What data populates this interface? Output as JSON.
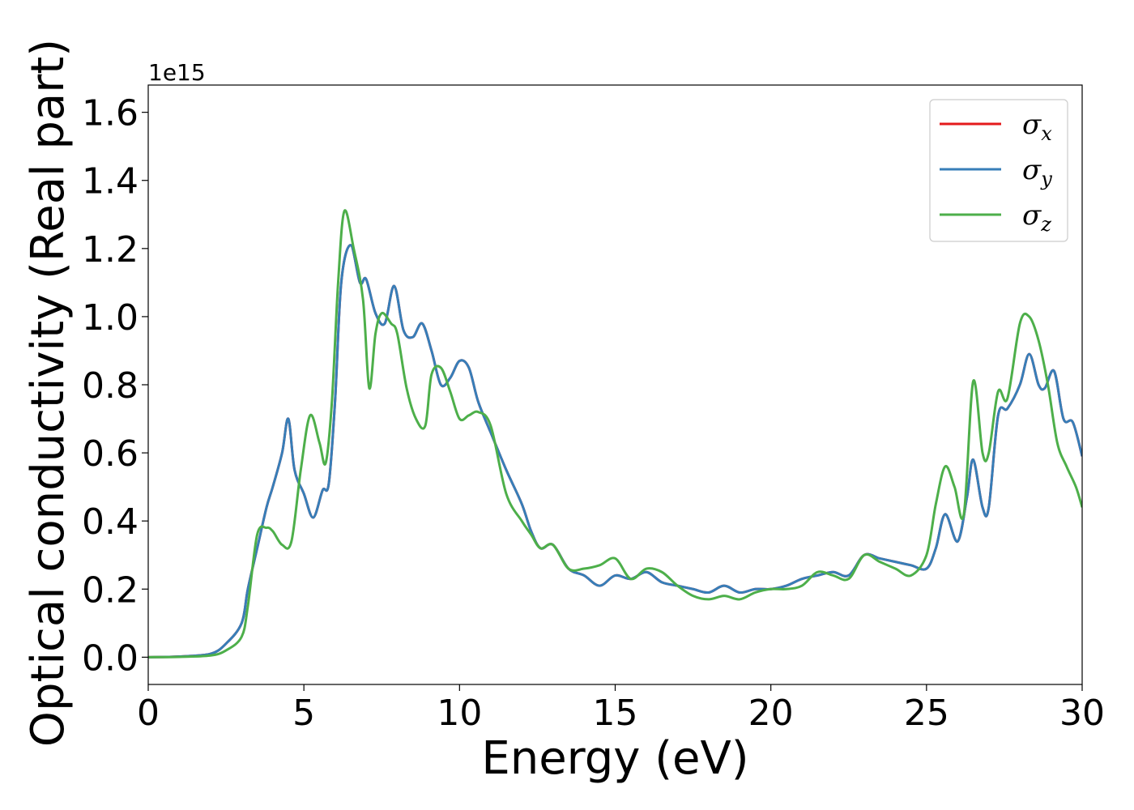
{
  "chart_data": {
    "type": "line",
    "xlabel": "Energy (eV)",
    "ylabel": "Optical conductivity (Real part)",
    "y_offset_label": "1e15",
    "xlim": [
      0,
      30
    ],
    "ylim": [
      -0.08,
      1.68
    ],
    "x_ticks": [
      0,
      5,
      10,
      15,
      20,
      25,
      30
    ],
    "y_ticks": [
      0.0,
      0.2,
      0.4,
      0.6,
      0.8,
      1.0,
      1.2,
      1.4,
      1.6
    ],
    "x_tick_labels": [
      "0",
      "5",
      "10",
      "15",
      "20",
      "25",
      "30"
    ],
    "y_tick_labels": [
      "0.0",
      "0.2",
      "0.4",
      "0.6",
      "0.8",
      "1.0",
      "1.2",
      "1.4",
      "1.6"
    ],
    "grid": false,
    "legend_position": "top-right",
    "legend_symbol": "σ",
    "series": [
      {
        "name": "x",
        "color": "#e41a1c",
        "x": [
          0,
          1,
          2,
          2.5,
          3,
          3.2,
          3.5,
          3.8,
          4.0,
          4.3,
          4.5,
          4.7,
          5.0,
          5.3,
          5.6,
          5.8,
          6.0,
          6.2,
          6.5,
          6.8,
          7.0,
          7.3,
          7.6,
          7.9,
          8.2,
          8.5,
          8.8,
          9.1,
          9.4,
          9.7,
          10.0,
          10.3,
          10.6,
          11.0,
          11.5,
          12.0,
          12.3,
          12.6,
          13.0,
          13.5,
          14.0,
          14.5,
          15.0,
          15.5,
          16.0,
          16.5,
          17.0,
          17.5,
          18.0,
          18.5,
          19.0,
          19.5,
          20.0,
          20.5,
          21.0,
          21.5,
          22.0,
          22.5,
          23.0,
          23.5,
          24.0,
          24.5,
          25.0,
          25.3,
          25.6,
          26.0,
          26.3,
          26.5,
          26.8,
          27.0,
          27.3,
          27.6,
          28.0,
          28.3,
          28.6,
          28.8,
          29.1,
          29.4,
          29.7,
          30.0
        ],
        "values": [
          0.0,
          0.002,
          0.01,
          0.04,
          0.1,
          0.2,
          0.32,
          0.44,
          0.5,
          0.6,
          0.7,
          0.55,
          0.48,
          0.41,
          0.49,
          0.51,
          0.75,
          1.1,
          1.21,
          1.1,
          1.11,
          1.01,
          0.98,
          1.09,
          0.96,
          0.94,
          0.98,
          0.9,
          0.8,
          0.82,
          0.87,
          0.85,
          0.75,
          0.66,
          0.55,
          0.45,
          0.37,
          0.32,
          0.33,
          0.26,
          0.24,
          0.21,
          0.24,
          0.23,
          0.25,
          0.22,
          0.21,
          0.2,
          0.19,
          0.21,
          0.19,
          0.2,
          0.2,
          0.21,
          0.23,
          0.24,
          0.25,
          0.24,
          0.3,
          0.29,
          0.28,
          0.27,
          0.26,
          0.32,
          0.42,
          0.34,
          0.47,
          0.58,
          0.44,
          0.44,
          0.71,
          0.73,
          0.8,
          0.89,
          0.8,
          0.79,
          0.84,
          0.7,
          0.69,
          0.59
        ]
      },
      {
        "name": "y",
        "color": "#377eb8",
        "x": [
          0,
          1,
          2,
          2.5,
          3,
          3.2,
          3.5,
          3.8,
          4.0,
          4.3,
          4.5,
          4.7,
          5.0,
          5.3,
          5.6,
          5.8,
          6.0,
          6.2,
          6.5,
          6.8,
          7.0,
          7.3,
          7.6,
          7.9,
          8.2,
          8.5,
          8.8,
          9.1,
          9.4,
          9.7,
          10.0,
          10.3,
          10.6,
          11.0,
          11.5,
          12.0,
          12.3,
          12.6,
          13.0,
          13.5,
          14.0,
          14.5,
          15.0,
          15.5,
          16.0,
          16.5,
          17.0,
          17.5,
          18.0,
          18.5,
          19.0,
          19.5,
          20.0,
          20.5,
          21.0,
          21.5,
          22.0,
          22.5,
          23.0,
          23.5,
          24.0,
          24.5,
          25.0,
          25.3,
          25.6,
          26.0,
          26.3,
          26.5,
          26.8,
          27.0,
          27.3,
          27.6,
          28.0,
          28.3,
          28.6,
          28.8,
          29.1,
          29.4,
          29.7,
          30.0
        ],
        "values": [
          0.0,
          0.002,
          0.01,
          0.04,
          0.1,
          0.2,
          0.32,
          0.44,
          0.5,
          0.6,
          0.7,
          0.55,
          0.48,
          0.41,
          0.49,
          0.51,
          0.75,
          1.1,
          1.21,
          1.1,
          1.11,
          1.01,
          0.98,
          1.09,
          0.96,
          0.94,
          0.98,
          0.9,
          0.8,
          0.82,
          0.87,
          0.85,
          0.75,
          0.66,
          0.55,
          0.45,
          0.37,
          0.32,
          0.33,
          0.26,
          0.24,
          0.21,
          0.24,
          0.23,
          0.25,
          0.22,
          0.21,
          0.2,
          0.19,
          0.21,
          0.19,
          0.2,
          0.2,
          0.21,
          0.23,
          0.24,
          0.25,
          0.24,
          0.3,
          0.29,
          0.28,
          0.27,
          0.26,
          0.32,
          0.42,
          0.34,
          0.47,
          0.58,
          0.44,
          0.44,
          0.71,
          0.73,
          0.8,
          0.89,
          0.8,
          0.79,
          0.84,
          0.7,
          0.69,
          0.59
        ]
      },
      {
        "name": "z",
        "color": "#4daf4a",
        "x": [
          0,
          1,
          2,
          2.5,
          3,
          3.2,
          3.5,
          3.8,
          4.0,
          4.3,
          4.6,
          4.9,
          5.2,
          5.5,
          5.7,
          5.9,
          6.1,
          6.3,
          6.6,
          6.9,
          7.1,
          7.3,
          7.5,
          7.8,
          8.0,
          8.3,
          8.6,
          8.9,
          9.1,
          9.4,
          9.7,
          10.0,
          10.3,
          10.6,
          11.0,
          11.5,
          12.0,
          12.3,
          12.6,
          13.0,
          13.5,
          14.0,
          14.5,
          15.0,
          15.5,
          16.0,
          16.5,
          17.0,
          17.5,
          18.0,
          18.5,
          19.0,
          19.5,
          20.0,
          20.5,
          21.0,
          21.5,
          22.0,
          22.5,
          23.0,
          23.5,
          24.0,
          24.5,
          25.0,
          25.3,
          25.6,
          25.9,
          26.2,
          26.5,
          26.8,
          27.0,
          27.3,
          27.6,
          28.0,
          28.3,
          28.6,
          28.9,
          29.2,
          29.5,
          29.8,
          30.0
        ],
        "values": [
          0.0,
          0.001,
          0.005,
          0.02,
          0.06,
          0.15,
          0.36,
          0.38,
          0.37,
          0.33,
          0.34,
          0.55,
          0.71,
          0.63,
          0.57,
          0.75,
          1.1,
          1.31,
          1.2,
          1.05,
          0.79,
          0.95,
          1.01,
          0.98,
          0.95,
          0.79,
          0.7,
          0.68,
          0.83,
          0.85,
          0.78,
          0.7,
          0.71,
          0.72,
          0.68,
          0.48,
          0.4,
          0.36,
          0.32,
          0.33,
          0.26,
          0.26,
          0.27,
          0.29,
          0.23,
          0.26,
          0.25,
          0.21,
          0.18,
          0.17,
          0.18,
          0.17,
          0.19,
          0.2,
          0.2,
          0.21,
          0.25,
          0.24,
          0.23,
          0.3,
          0.28,
          0.26,
          0.24,
          0.3,
          0.45,
          0.56,
          0.5,
          0.42,
          0.81,
          0.6,
          0.6,
          0.78,
          0.76,
          0.98,
          1.0,
          0.93,
          0.8,
          0.63,
          0.56,
          0.5,
          0.44
        ]
      }
    ]
  }
}
